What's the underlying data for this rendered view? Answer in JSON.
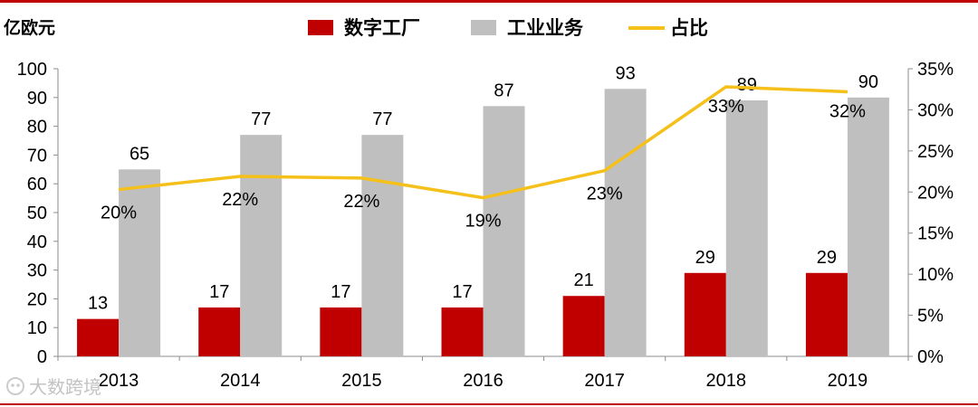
{
  "chart_data": {
    "type": "bar",
    "left_axis_unit": "亿欧元",
    "categories": [
      "2013",
      "2014",
      "2015",
      "2016",
      "2017",
      "2018",
      "2019"
    ],
    "series": [
      {
        "name": "数字工厂",
        "kind": "bar",
        "axis": "left",
        "color": "#c00000",
        "values": [
          13,
          17,
          17,
          17,
          21,
          29,
          29
        ],
        "labels": [
          "13",
          "17",
          "17",
          "17",
          "21",
          "29",
          "29"
        ]
      },
      {
        "name": "工业业务",
        "kind": "bar",
        "axis": "left",
        "color": "#bfbfbf",
        "values": [
          65,
          77,
          77,
          87,
          93,
          89,
          90
        ],
        "labels": [
          "65",
          "77",
          "77",
          "87",
          "93",
          "89",
          "90"
        ]
      },
      {
        "name": "占比",
        "kind": "line",
        "axis": "right",
        "color": "#f5c01a",
        "values": [
          20.3,
          21.9,
          21.7,
          19.3,
          22.6,
          32.8,
          32.2
        ],
        "labels": [
          "20%",
          "22%",
          "22%",
          "19%",
          "23%",
          "33%",
          "32%"
        ]
      }
    ],
    "y_left": {
      "min": 0,
      "max": 100,
      "ticks": [
        "0",
        "10",
        "20",
        "30",
        "40",
        "50",
        "60",
        "70",
        "80",
        "90",
        "100"
      ]
    },
    "y_right": {
      "min": 0,
      "max": 35,
      "ticks": [
        "0%",
        "5%",
        "10%",
        "15%",
        "20%",
        "25%",
        "30%",
        "35%"
      ]
    },
    "legend_position": "top",
    "grid": false
  },
  "watermark": {
    "text": "大数跨境",
    "icon": "brand-logo-icon"
  }
}
